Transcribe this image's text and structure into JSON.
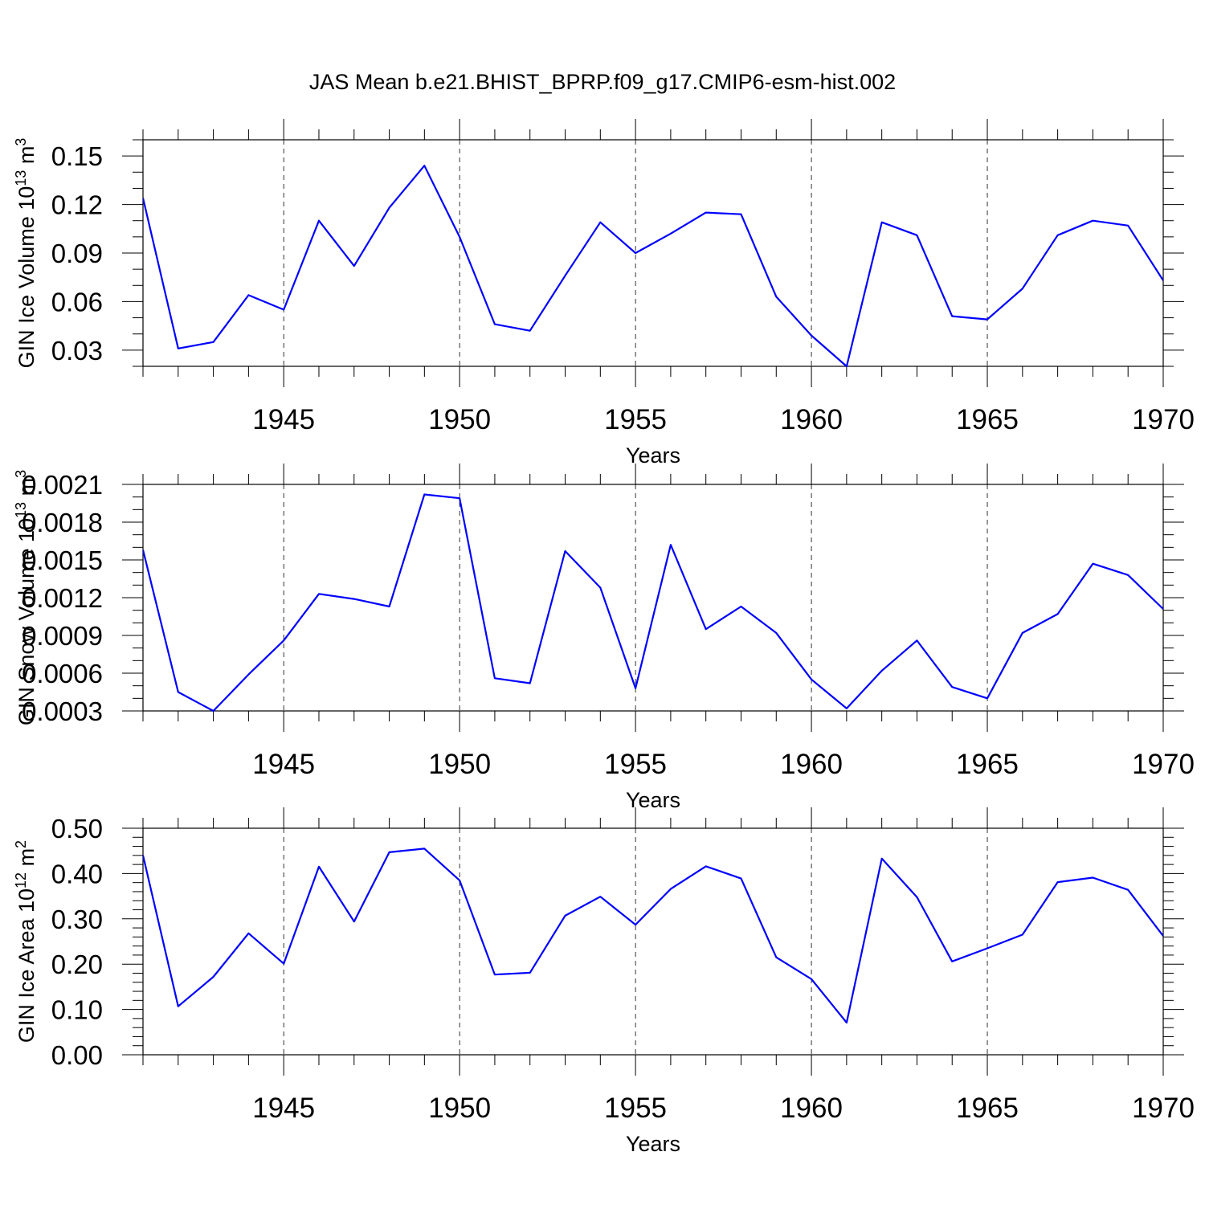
{
  "figure_title": "JAS Mean b.e21.BHIST_BPRP.f09_g17.CMIP6-esm-hist.002",
  "colors": {
    "series": "#0000ff",
    "axis": "#000000"
  },
  "chart_data": [
    {
      "type": "line",
      "id": "ice-volume",
      "ylabel_parts": {
        "text": "GIN Ice Volume 10",
        "sup": "13",
        "unit": " m",
        "unit_sup": "3"
      },
      "xlabel": "Years",
      "xlim": [
        1941,
        1970
      ],
      "ylim": [
        0.02,
        0.16
      ],
      "xticks": [
        1945,
        1950,
        1955,
        1960,
        1965,
        1970
      ],
      "xtick_labels": [
        "1945",
        "1950",
        "1955",
        "1960",
        "1965",
        "1970"
      ],
      "yticks": [
        0.03,
        0.06,
        0.09,
        0.12,
        0.15
      ],
      "ytick_labels": [
        "0.03",
        "0.06",
        "0.09",
        "0.12",
        "0.15"
      ],
      "yminor_step": 0.01,
      "x": [
        1941,
        1942,
        1943,
        1944,
        1945,
        1946,
        1947,
        1948,
        1949,
        1950,
        1951,
        1952,
        1953,
        1954,
        1955,
        1956,
        1957,
        1958,
        1959,
        1960,
        1961,
        1962,
        1963,
        1964,
        1965,
        1966,
        1967,
        1968,
        1969,
        1970
      ],
      "values": [
        0.124,
        0.031,
        0.035,
        0.064,
        0.055,
        0.11,
        0.082,
        0.118,
        0.144,
        0.1,
        0.046,
        0.042,
        0.076,
        0.109,
        0.09,
        0.102,
        0.115,
        0.114,
        0.063,
        0.039,
        0.02,
        0.109,
        0.101,
        0.051,
        0.049,
        0.068,
        0.101,
        0.11,
        0.107,
        0.073
      ]
    },
    {
      "type": "line",
      "id": "snow-volume",
      "ylabel_parts": {
        "text": "GIN Snow Volume 10",
        "sup": "13",
        "unit": " m",
        "unit_sup": "3"
      },
      "xlabel": "Years",
      "xlim": [
        1941,
        1970
      ],
      "ylim": [
        0.0003,
        0.0021
      ],
      "xticks": [
        1945,
        1950,
        1955,
        1960,
        1965,
        1970
      ],
      "xtick_labels": [
        "1945",
        "1950",
        "1955",
        "1960",
        "1965",
        "1970"
      ],
      "yticks": [
        0.0003,
        0.0006,
        0.0009,
        0.0012,
        0.0015,
        0.0018,
        0.0021
      ],
      "ytick_labels": [
        "0.0003",
        "0.0006",
        "0.0009",
        "0.0012",
        "0.0015",
        "0.0018",
        "0.0021"
      ],
      "yminor_step": 0.0001,
      "x": [
        1941,
        1942,
        1943,
        1944,
        1945,
        1946,
        1947,
        1948,
        1949,
        1950,
        1951,
        1952,
        1953,
        1954,
        1955,
        1956,
        1957,
        1958,
        1959,
        1960,
        1961,
        1962,
        1963,
        1964,
        1965,
        1966,
        1967,
        1968,
        1969,
        1970
      ],
      "values": [
        0.00158,
        0.00045,
        0.0003,
        0.00059,
        0.00086,
        0.00123,
        0.00119,
        0.00113,
        0.00202,
        0.00199,
        0.00056,
        0.00052,
        0.00157,
        0.00128,
        0.00048,
        0.00162,
        0.00095,
        0.00113,
        0.00092,
        0.00055,
        0.00032,
        0.00062,
        0.00086,
        0.00049,
        0.0004,
        0.00092,
        0.00107,
        0.00147,
        0.00138,
        0.00111
      ]
    },
    {
      "type": "line",
      "id": "ice-area",
      "ylabel_parts": {
        "text": "GIN Ice Area 10",
        "sup": "12",
        "unit": " m",
        "unit_sup": "2"
      },
      "xlabel": "Years",
      "xlim": [
        1941,
        1970
      ],
      "ylim": [
        0.0,
        0.5
      ],
      "xticks": [
        1945,
        1950,
        1955,
        1960,
        1965,
        1970
      ],
      "xtick_labels": [
        "1945",
        "1950",
        "1955",
        "1960",
        "1965",
        "1970"
      ],
      "yticks": [
        0.0,
        0.1,
        0.2,
        0.3,
        0.4,
        0.5
      ],
      "ytick_labels": [
        "0.00",
        "0.10",
        "0.20",
        "0.30",
        "0.40",
        "0.50"
      ],
      "yminor_step": 0.02,
      "x": [
        1941,
        1942,
        1943,
        1944,
        1945,
        1946,
        1947,
        1948,
        1949,
        1950,
        1951,
        1952,
        1953,
        1954,
        1955,
        1956,
        1957,
        1958,
        1959,
        1960,
        1961,
        1962,
        1963,
        1964,
        1965,
        1966,
        1967,
        1968,
        1969,
        1970
      ],
      "values": [
        0.44,
        0.107,
        0.172,
        0.268,
        0.201,
        0.415,
        0.294,
        0.447,
        0.455,
        0.385,
        0.177,
        0.181,
        0.307,
        0.349,
        0.287,
        0.366,
        0.416,
        0.389,
        0.215,
        0.167,
        0.071,
        0.433,
        0.348,
        0.206,
        0.235,
        0.265,
        0.381,
        0.391,
        0.364,
        0.262
      ]
    }
  ]
}
